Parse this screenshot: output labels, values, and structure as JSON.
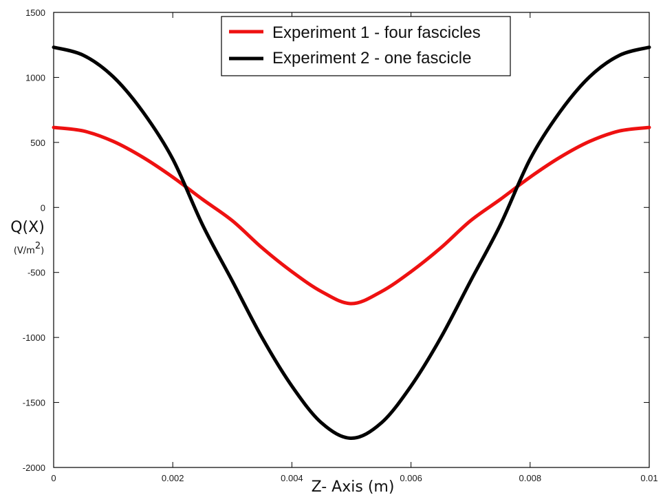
{
  "chart_data": {
    "type": "line",
    "title": "",
    "xlabel": "Z- Axis (m)",
    "ylabel": "Q(X)",
    "ylabel_unit": "(V/m",
    "ylabel_unit_exp": "2",
    "ylabel_unit_close": ")",
    "xlim": [
      0,
      0.01
    ],
    "ylim": [
      -2000,
      1500
    ],
    "x_ticks": [
      0,
      0.002,
      0.004,
      0.006,
      0.008,
      0.01
    ],
    "x_tick_labels": [
      "0",
      "0.002",
      "0.004",
      "0.006",
      "0.008",
      "0.01"
    ],
    "y_ticks": [
      -2000,
      -1500,
      -1000,
      -500,
      0,
      500,
      1000,
      1500
    ],
    "y_tick_labels": [
      "-2000",
      "-1500",
      "-1000",
      "-500",
      "0",
      "500",
      "1000",
      "1500"
    ],
    "grid": false,
    "legend_position": "top-right",
    "x": [
      0,
      0.0005,
      0.001,
      0.0015,
      0.002,
      0.0025,
      0.003,
      0.0035,
      0.004,
      0.0045,
      0.005,
      0.0055,
      0.006,
      0.0065,
      0.007,
      0.0075,
      0.008,
      0.0085,
      0.009,
      0.0095,
      0.01
    ],
    "series": [
      {
        "name": "Experiment 1 - four fascicles",
        "color": "#ee1111",
        "values": [
          615,
          588,
          508,
          385,
          233,
          62,
          -102,
          -311,
          -494,
          -648,
          -740,
          -648,
          -494,
          -311,
          -102,
          62,
          233,
          385,
          508,
          588,
          615
        ]
      },
      {
        "name": "Experiment 2 - one fascicle",
        "color": "#000000",
        "values": [
          1232,
          1170,
          1005,
          734,
          372,
          -134,
          -566,
          -1002,
          -1374,
          -1658,
          -1775,
          -1658,
          -1374,
          -1002,
          -566,
          -134,
          372,
          734,
          1005,
          1170,
          1232
        ]
      }
    ]
  }
}
